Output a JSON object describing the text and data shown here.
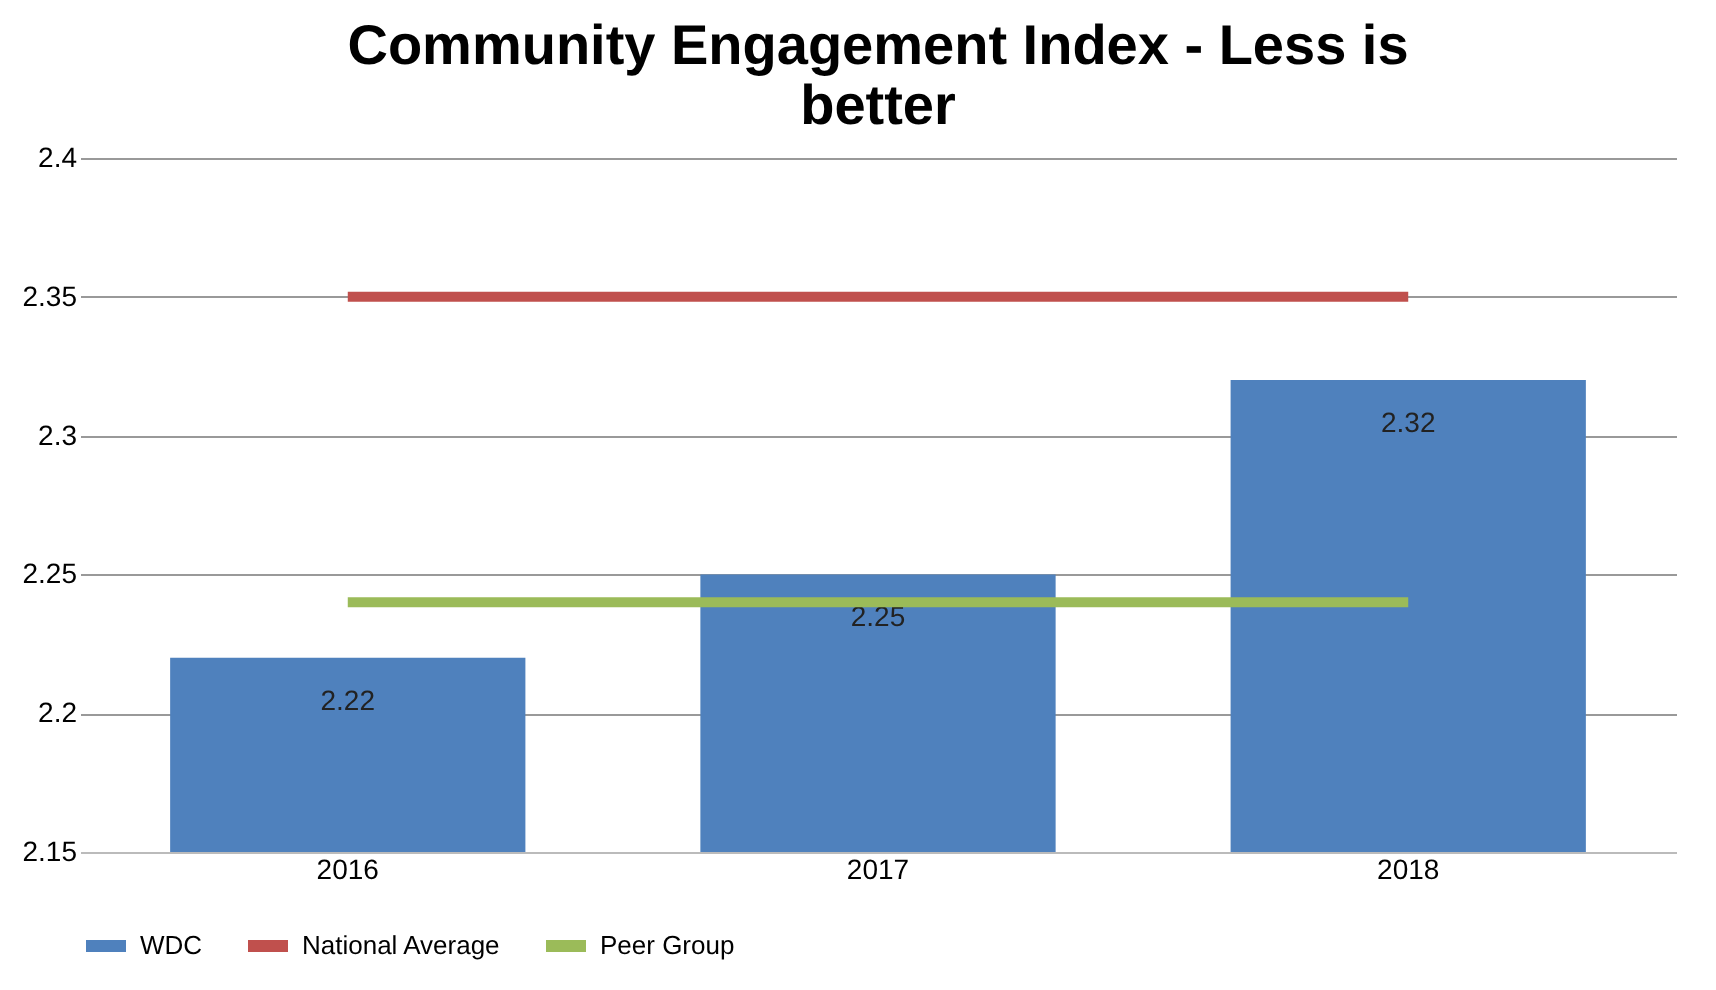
{
  "chart_data": {
    "type": "bar",
    "title": "Community Engagement Index - Less is better",
    "categories": [
      "2016",
      "2017",
      "2018"
    ],
    "series": [
      {
        "name": "WDC",
        "color": "#4f81bd",
        "values": [
          2.22,
          2.25,
          2.32
        ],
        "value_labels": [
          "2.22",
          "2.25",
          "2.32"
        ]
      },
      {
        "name": "National Average",
        "type": "line",
        "color": "#c0504d",
        "values": [
          2.35,
          2.35,
          2.35
        ]
      },
      {
        "name": "Peer Group",
        "type": "line",
        "color": "#9bbb59",
        "values": [
          2.24,
          2.24,
          2.24
        ]
      }
    ],
    "ylim": [
      2.15,
      2.4
    ],
    "yticks": [
      2.15,
      2.2,
      2.25,
      2.3,
      2.35,
      2.4
    ],
    "grid": "y",
    "legend": "bottom"
  }
}
